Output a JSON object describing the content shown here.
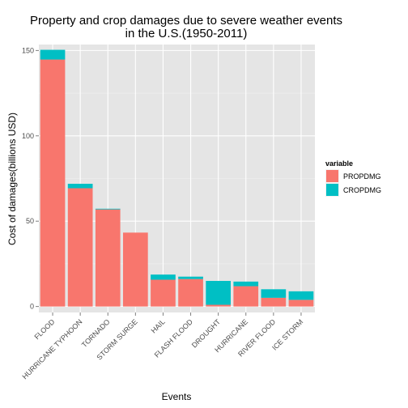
{
  "chart_data": {
    "type": "bar",
    "stacked": true,
    "title_line1": "Property and crop damages due to severe weather events",
    "title_line2": "in the U.S.(1950-2011)",
    "xlabel": "Events",
    "ylabel": "Cost of damages(billions USD)",
    "categories": [
      "FLOOD",
      "HURRICANE TYPHOON",
      "TORNADO",
      "STORM SURGE",
      "HAIL",
      "FLASH FLOOD",
      "DROUGHT",
      "HURRICANE",
      "RIVER FLOOD",
      "ICE STORM"
    ],
    "series": [
      {
        "name": "PROPDMG",
        "color": "#F8766D",
        "values": [
          144.7,
          69.3,
          56.9,
          43.3,
          15.7,
          16.1,
          1.0,
          11.9,
          5.1,
          3.9
        ]
      },
      {
        "name": "CROPDMG",
        "color": "#00BFC4",
        "values": [
          5.7,
          2.6,
          0.4,
          0.0,
          3.0,
          1.4,
          14.0,
          2.7,
          5.0,
          5.0
        ]
      }
    ],
    "yticks": [
      0,
      50,
      100,
      150
    ],
    "ylim": [
      -3.5,
      153.5
    ],
    "grid": true,
    "legend": {
      "title": "variable",
      "position": "right"
    }
  }
}
